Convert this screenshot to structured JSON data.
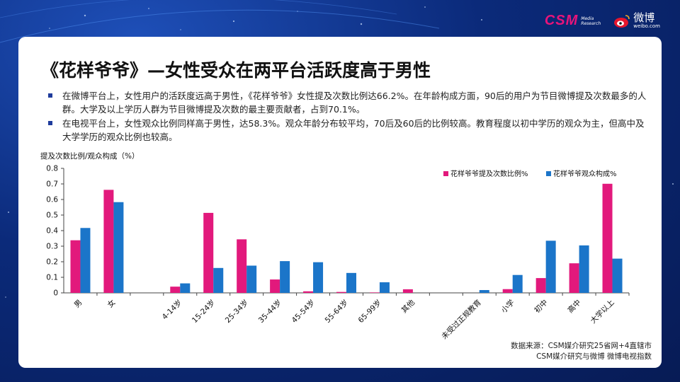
{
  "header": {
    "csm_logo": "CSM",
    "csm_sub1": "Media",
    "csm_sub2": "Research",
    "weibo_logo": "微博",
    "weibo_sub": "weibo.com"
  },
  "title": "《花样爷爷》—女性受众在两平台活跃度高于男性",
  "bullets": [
    "在微博平台上，女性用户的活跃度远高于男性，《花样爷爷》女性提及次数比例达66.2%。在年龄构成方面，90后的用户为节目微博提及次数最多的人群。大学及以上学历人群为节目微博提及次数的最主要贡献者，占到70.1%。",
    "在电视平台上，女性观众比例同样高于男性，达58.3%。观众年龄分布较平均，70后及60后的比例较高。教育程度以初中学历的观众为主，但高中及大学学历的观众比例也较高。"
  ],
  "source": [
    "数据来源：CSM媒介研究25省网+4直辖市",
    "CSM媒介研究与微博 微博电视指数"
  ],
  "colors": {
    "series1": "#e2197c",
    "series2": "#1b75c9",
    "bullet": "#1f3c9c"
  },
  "chart_data": {
    "type": "bar",
    "ylabel": "提及次数比例/观众构成（%）",
    "ylim": [
      0,
      0.8
    ],
    "yticks": [
      "0",
      "0.1",
      "0.2",
      "0.3",
      "0.4",
      "0.5",
      "0.6",
      "0.7",
      "0.8"
    ],
    "legend_position": "top-right",
    "categories": [
      "男",
      "女",
      "",
      "4-14岁",
      "15-24岁",
      "25-34岁",
      "35-44岁",
      "45-54岁",
      "55-64岁",
      "65-99岁",
      "其他",
      "",
      "未受过正规教育",
      "小学",
      "初中",
      "高中",
      "大学以上"
    ],
    "series": [
      {
        "name": "花样爷爷提及次数比例%",
        "values": [
          0.338,
          0.662,
          null,
          0.04,
          0.514,
          0.344,
          0.086,
          0.01,
          0.006,
          0.003,
          0.023,
          null,
          0,
          0.024,
          0.095,
          0.19,
          0.701
        ]
      },
      {
        "name": "花样爷爷观众构成%",
        "values": [
          0.417,
          0.583,
          null,
          0.061,
          0.16,
          0.175,
          0.204,
          0.197,
          0.128,
          0.068,
          0,
          null,
          0.018,
          0.115,
          0.335,
          0.305,
          0.22
        ]
      }
    ]
  }
}
